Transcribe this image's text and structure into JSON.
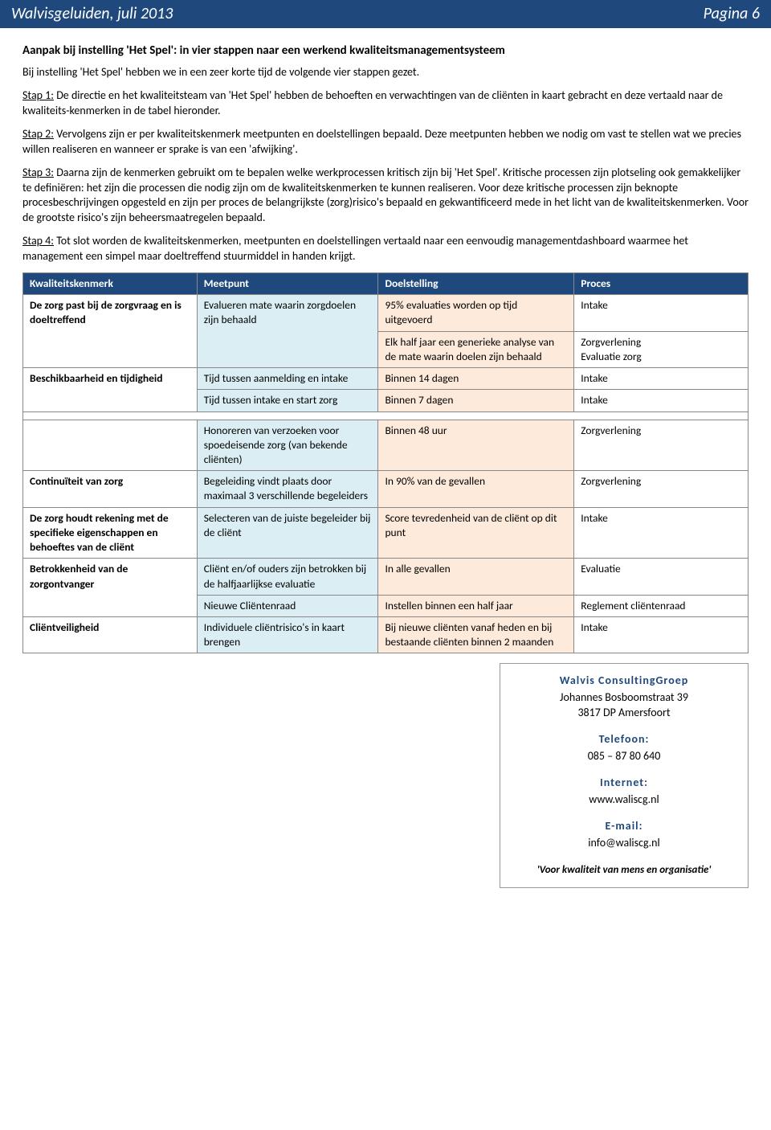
{
  "header": {
    "left": "Walvisgeluiden, juli 2013",
    "right": "Pagina 6"
  },
  "title": "Aanpak bij instelling 'Het Spel': in vier stappen naar een werkend kwaliteitsmanagementsysteem",
  "intro": "Bij instelling 'Het Spel' hebben we in een zeer korte tijd de volgende vier stappen gezet.",
  "steps": {
    "s1label": "Stap 1:",
    "s1": " De directie en het kwaliteitsteam van 'Het Spel' hebben de behoeften en verwachtingen van de cliënten in kaart gebracht en deze vertaald naar de kwaliteits-kenmerken in de tabel hieronder.",
    "s2label": "Stap 2:",
    "s2": " Vervolgens zijn er per kwaliteitskenmerk meetpunten en doelstellingen bepaald. Deze meetpunten hebben we nodig om vast te stellen wat we precies willen realiseren en wanneer er sprake is van een 'afwijking'.",
    "s3label": "Stap 3:",
    "s3": " Daarna zijn de kenmerken gebruikt om te bepalen welke werkprocessen kritisch zijn bij 'Het Spel'. Kritische processen zijn plotseling ook gemakkelijker te definiëren: het zijn die processen die nodig zijn om de kwaliteitskenmerken te kunnen realiseren. Voor deze kritische processen zijn beknopte procesbeschrijvingen opgesteld en zijn per proces de belangrijkste (zorg)risico's bepaald en gekwantificeerd mede in het licht van de kwaliteitskenmerken. Voor de grootste risico's zijn beheersmaatregelen bepaald.",
    "s4label": "Stap 4:",
    "s4": " Tot slot worden de kwaliteitskenmerken, meetpunten en doelstellingen vertaald naar een eenvoudig managementdashboard waarmee het management een simpel maar doeltreffend stuurmiddel in handen krijgt."
  },
  "table": {
    "headers": [
      "Kwaliteitskenmerk",
      "Meetpunt",
      "Doelstelling",
      "Proces"
    ],
    "rows": [
      {
        "c1": "De zorg past bij de zorgvraag en is doeltreffend",
        "c1rs": 2,
        "c2": "Evalueren mate waarin zorgdoelen zijn behaald",
        "c2rs": 2,
        "c3": "95% evaluaties worden op tijd uitgevoerd",
        "c4": "Intake"
      },
      {
        "c3": "Elk half jaar een generieke analyse van de mate waarin doelen zijn behaald",
        "c4": "Zorgverlening\nEvaluatie zorg"
      },
      {
        "c1": "Beschikbaarheid en tijdigheid",
        "c1rs": 2,
        "c2": "Tijd tussen aanmelding en intake",
        "c3": "Binnen 14 dagen",
        "c4": "Intake"
      },
      {
        "c2": "Tijd tussen intake en start zorg",
        "c3": "Binnen 7 dagen",
        "c4": "Intake"
      },
      {
        "spacer": true
      },
      {
        "c1": "",
        "c2": "Honoreren van verzoeken voor spoedeisende zorg (van bekende cliënten)",
        "c3": "Binnen 48 uur",
        "c4": "Zorgverlening"
      },
      {
        "c1": "Continuïteit van zorg",
        "c2": "Begeleiding vindt plaats door maximaal 3 verschillende begeleiders",
        "c3": "In 90% van de gevallen",
        "c4": "Zorgverlening"
      },
      {
        "c1": "De zorg houdt rekening met de specifieke eigenschappen en behoeftes van de cliënt",
        "c2": "Selecteren van de juiste begeleider bij de cliënt",
        "c3": "Score tevredenheid van de cliënt op dit punt",
        "c4": "Intake"
      },
      {
        "c1": "Betrokkenheid van de zorgontvanger",
        "c1rs": 2,
        "c2": "Cliënt en/of ouders zijn betrokken bij de halfjaarlijkse evaluatie",
        "c3": "In alle gevallen",
        "c4": "Evaluatie"
      },
      {
        "c2": "Nieuwe Cliëntenraad",
        "c3": "Instellen binnen een half jaar",
        "c4": "Reglement cliëntenraad"
      },
      {
        "c1": "Cliëntveiligheid",
        "c2": "Individuele cliëntrisico's in kaart brengen",
        "c3": "Bij nieuwe cliënten vanaf heden en bij bestaande cliënten binnen 2 maanden",
        "c4": "Intake"
      }
    ]
  },
  "footer": {
    "org": "Walvis ConsultingGroep",
    "addr1": "Johannes Bosboomstraat 39",
    "addr2": "3817 DP  Amersfoort",
    "tel_label": "Telefoon:",
    "tel": "085 – 87 80 640",
    "web_label": "Internet:",
    "web": "www.waliscg.nl",
    "mail_label": "E-mail:",
    "mail": "info@waliscg.nl",
    "motto": "'Voor kwaliteit van mens en organisatie'"
  }
}
